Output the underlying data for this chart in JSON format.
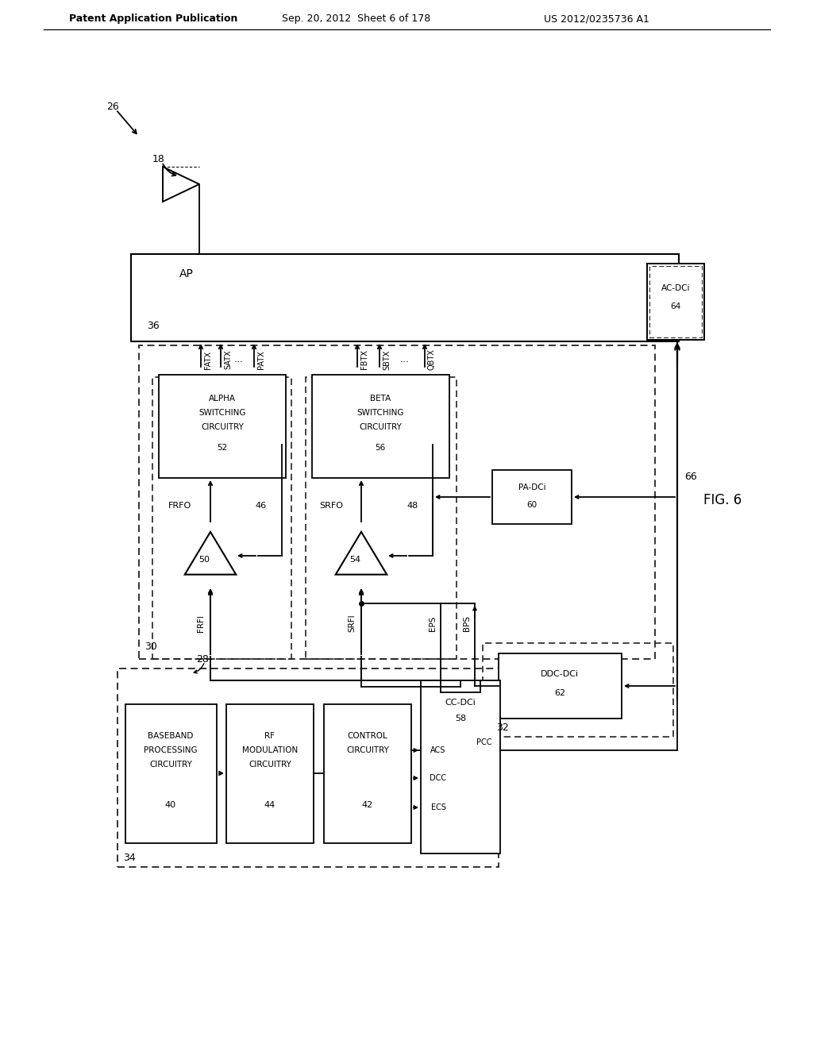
{
  "header_left": "Patent Application Publication",
  "header_mid": "Sep. 20, 2012  Sheet 6 of 178",
  "header_right": "US 2012/0235736 A1",
  "fig_label": "FIG. 6",
  "bg_color": "#ffffff"
}
